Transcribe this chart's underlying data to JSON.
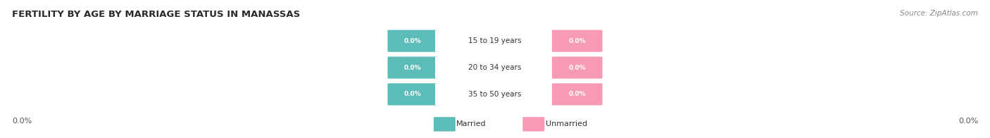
{
  "title": "FERTILITY BY AGE BY MARRIAGE STATUS IN MANASSAS",
  "source": "Source: ZipAtlas.com",
  "age_groups": [
    "15 to 19 years",
    "20 to 34 years",
    "35 to 50 years"
  ],
  "married_values": [
    0.0,
    0.0,
    0.0
  ],
  "unmarried_values": [
    0.0,
    0.0,
    0.0
  ],
  "married_color": "#5bbcb8",
  "unmarried_color": "#f79ab5",
  "row_bg_colors": [
    "#f0f0f0",
    "#e6e6e6",
    "#f0f0f0"
  ],
  "title_fontsize": 9.5,
  "source_fontsize": 7.5,
  "value_label_color": "#ffffff",
  "center_label_color": "#333333",
  "left_axis_label": "0.0%",
  "right_axis_label": "0.0%",
  "legend_married": "Married",
  "legend_unmarried": "Unmarried",
  "background_color": "#ffffff"
}
